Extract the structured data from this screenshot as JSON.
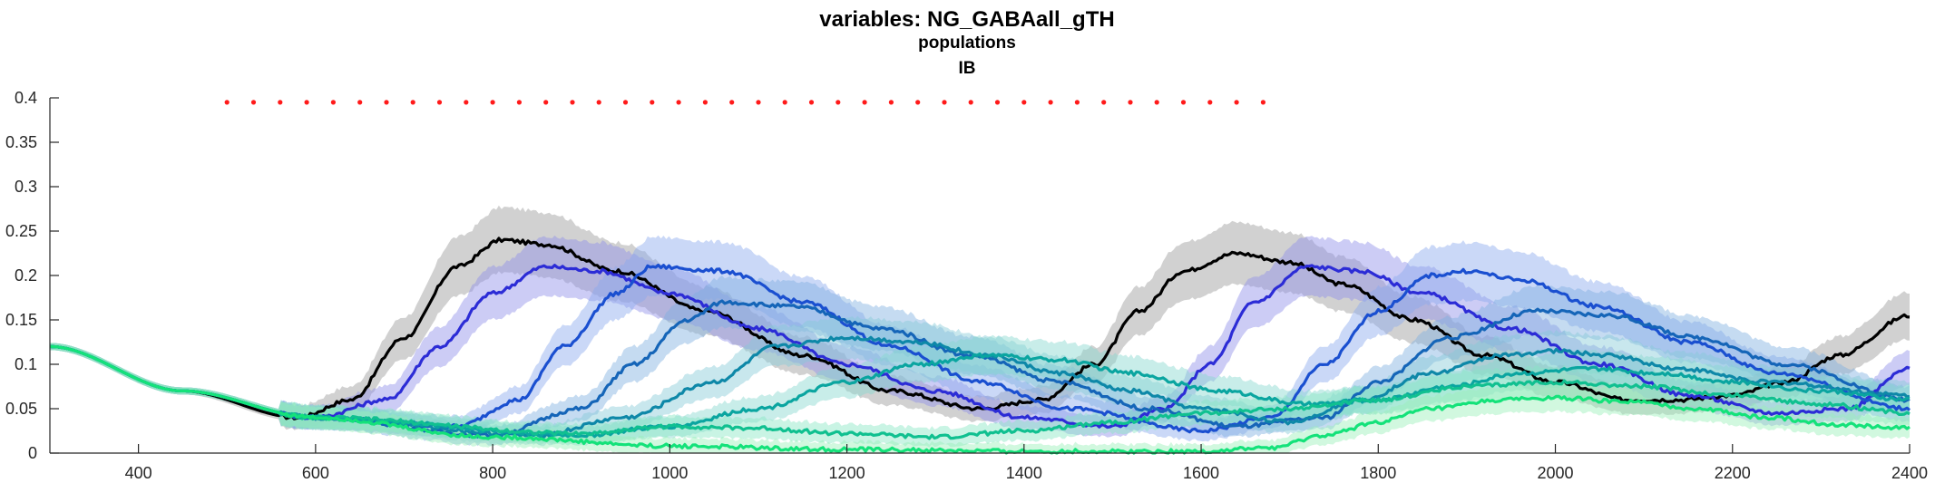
{
  "chart_data": {
    "type": "line",
    "title": "variables: NG_GABAall_gTH",
    "subtitle_lines": [
      "populations",
      "IB"
    ],
    "xlabel": "",
    "ylabel": "",
    "xlim": [
      300,
      2400
    ],
    "ylim": [
      0,
      0.4
    ],
    "xticks": [
      400,
      600,
      800,
      1000,
      1200,
      1400,
      1600,
      1800,
      2000,
      2200,
      2400
    ],
    "yticks": [
      0,
      0.05,
      0.1,
      0.15,
      0.2,
      0.25,
      0.3,
      0.35,
      0.4
    ],
    "grid": false,
    "legend": "none",
    "stimulus_markers": {
      "color": "#ff1a1a",
      "y": 0.395,
      "x_start": 500,
      "x_end": 1680,
      "step": 30
    },
    "series": [
      {
        "color": "#000000",
        "band": "#9a9a9a",
        "x": [
          300,
          450,
          580,
          640,
          700,
          760,
          810,
          860,
          940,
          1040,
          1150,
          1250,
          1350,
          1420,
          1480,
          1530,
          1580,
          1640,
          1700,
          1760,
          1840,
          1920,
          2000,
          2080,
          2140,
          2200,
          2260,
          2320,
          2400
        ],
        "y": [
          0.12,
          0.07,
          0.04,
          0.06,
          0.13,
          0.21,
          0.24,
          0.235,
          0.205,
          0.16,
          0.11,
          0.07,
          0.05,
          0.06,
          0.1,
          0.16,
          0.205,
          0.225,
          0.215,
          0.19,
          0.15,
          0.11,
          0.08,
          0.06,
          0.06,
          0.065,
          0.08,
          0.11,
          0.155
        ]
      },
      {
        "color": "#2c2cd6",
        "band": "#8f8fe8",
        "x": [
          300,
          450,
          600,
          680,
          740,
          800,
          860,
          920,
          1000,
          1100,
          1200,
          1300,
          1400,
          1500,
          1560,
          1610,
          1660,
          1720,
          1780,
          1850,
          1950,
          2050,
          2150,
          2250,
          2330,
          2400
        ],
        "y": [
          0.12,
          0.07,
          0.04,
          0.06,
          0.12,
          0.18,
          0.21,
          0.205,
          0.18,
          0.14,
          0.1,
          0.07,
          0.04,
          0.03,
          0.05,
          0.1,
          0.17,
          0.21,
          0.205,
          0.18,
          0.14,
          0.1,
          0.065,
          0.045,
          0.05,
          0.095
        ]
      },
      {
        "color": "#1a4fd0",
        "band": "#8aa8ee",
        "x": [
          300,
          450,
          600,
          760,
          830,
          880,
          940,
          980,
          1060,
          1150,
          1250,
          1350,
          1450,
          1600,
          1680,
          1740,
          1800,
          1860,
          1900,
          1960,
          2050,
          2150,
          2250,
          2400
        ],
        "y": [
          0.12,
          0.07,
          0.04,
          0.03,
          0.06,
          0.12,
          0.18,
          0.21,
          0.205,
          0.17,
          0.12,
          0.08,
          0.05,
          0.025,
          0.04,
          0.1,
          0.16,
          0.2,
          0.205,
          0.195,
          0.165,
          0.125,
          0.09,
          0.05
        ]
      },
      {
        "color": "#1565b8",
        "band": "#7fb0e0",
        "x": [
          300,
          450,
          600,
          800,
          900,
          960,
          1020,
          1060,
          1140,
          1240,
          1340,
          1440,
          1540,
          1640,
          1740,
          1800,
          1880,
          1980,
          2060,
          2160,
          2260,
          2400
        ],
        "y": [
          0.12,
          0.07,
          0.04,
          0.02,
          0.05,
          0.1,
          0.15,
          0.17,
          0.165,
          0.14,
          0.11,
          0.08,
          0.05,
          0.03,
          0.04,
          0.08,
          0.13,
          0.16,
          0.155,
          0.13,
          0.1,
          0.06
        ]
      },
      {
        "color": "#0e88a8",
        "band": "#86c9d8",
        "x": [
          300,
          450,
          600,
          850,
          950,
          1050,
          1120,
          1200,
          1280,
          1360,
          1440,
          1520,
          1600,
          1700,
          1780,
          1860,
          1940,
          2000,
          2060,
          2140,
          2240,
          2400
        ],
        "y": [
          0.12,
          0.07,
          0.04,
          0.02,
          0.04,
          0.08,
          0.12,
          0.13,
          0.125,
          0.11,
          0.09,
          0.07,
          0.05,
          0.035,
          0.06,
          0.09,
          0.11,
          0.115,
          0.11,
          0.095,
          0.08,
          0.065
        ]
      },
      {
        "color": "#0aa5a0",
        "band": "#86d6cf",
        "x": [
          300,
          450,
          600,
          900,
          1000,
          1100,
          1200,
          1280,
          1360,
          1440,
          1520,
          1620,
          1720,
          1800,
          1880,
          1960,
          2040,
          2120,
          2200,
          2300,
          2400
        ],
        "y": [
          0.12,
          0.07,
          0.04,
          0.02,
          0.03,
          0.05,
          0.08,
          0.1,
          0.11,
          0.105,
          0.09,
          0.07,
          0.055,
          0.06,
          0.075,
          0.09,
          0.095,
          0.09,
          0.08,
          0.07,
          0.06
        ]
      },
      {
        "color": "#10c090",
        "band": "#88e6c4",
        "x": [
          300,
          450,
          600,
          900,
          1000,
          1100,
          1200,
          1300,
          1400,
          1500,
          1600,
          1700,
          1800,
          1900,
          2000,
          2100,
          2200,
          2300,
          2400
        ],
        "y": [
          0.12,
          0.07,
          0.04,
          0.022,
          0.03,
          0.028,
          0.022,
          0.018,
          0.025,
          0.035,
          0.045,
          0.05,
          0.06,
          0.075,
          0.08,
          0.075,
          0.065,
          0.055,
          0.045
        ]
      },
      {
        "color": "#14e27a",
        "band": "#9af0b8",
        "x": [
          300,
          450,
          600,
          800,
          1000,
          1200,
          1400,
          1600,
          1680,
          1740,
          1800,
          1860,
          1940,
          2000,
          2080,
          2160,
          2240,
          2320,
          2400
        ],
        "y": [
          0.12,
          0.07,
          0.04,
          0.018,
          0.008,
          0.004,
          0.002,
          0.002,
          0.006,
          0.02,
          0.035,
          0.05,
          0.06,
          0.062,
          0.058,
          0.05,
          0.04,
          0.032,
          0.028
        ]
      }
    ]
  }
}
